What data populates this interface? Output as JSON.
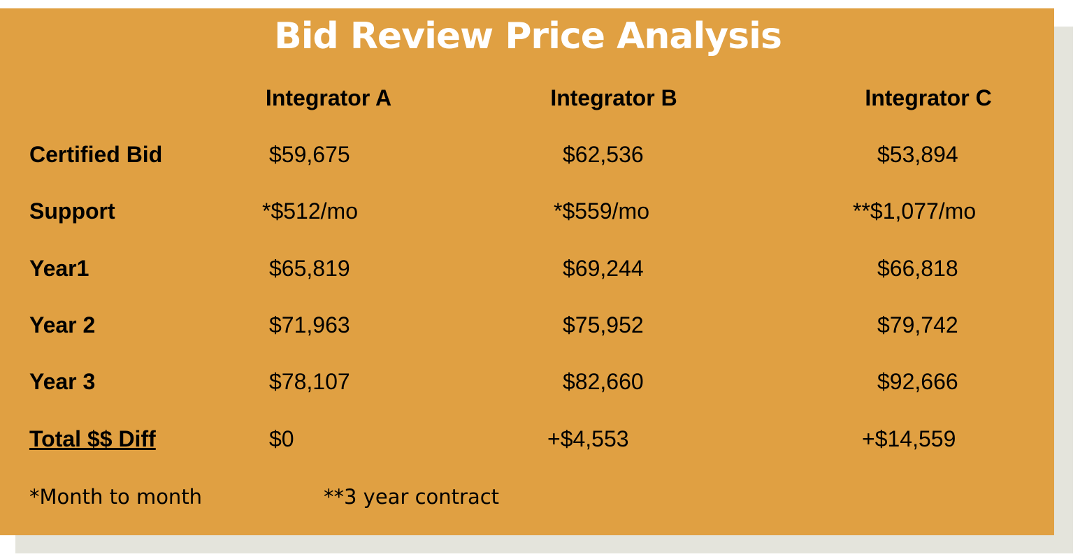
{
  "title": "Bid Review Price Analysis",
  "table": {
    "columns": [
      "Integrator A",
      "Integrator B",
      "Integrator C"
    ],
    "rows": [
      {
        "label": "Certified Bid",
        "cells": [
          "$59,675",
          "$62,536",
          "$53,894"
        ]
      },
      {
        "label": "Support",
        "cells": [
          "*$512/mo",
          "*$559/mo",
          "**$1,077/mo"
        ]
      },
      {
        "label": "Year1",
        "cells": [
          "$65,819",
          "$69,244",
          "$66,818"
        ]
      },
      {
        "label": "Year 2",
        "cells": [
          "$71,963",
          "$75,952",
          "$79,742"
        ]
      },
      {
        "label": "Year 3",
        "cells": [
          "$78,107",
          "$82,660",
          "$92,666"
        ]
      },
      {
        "label": "Total $$ Diff",
        "cells": [
          "$0",
          "+$4,553",
          "+$14,559"
        ]
      }
    ]
  },
  "footnotes": [
    "*Month to month",
    "**3 year contract"
  ]
}
